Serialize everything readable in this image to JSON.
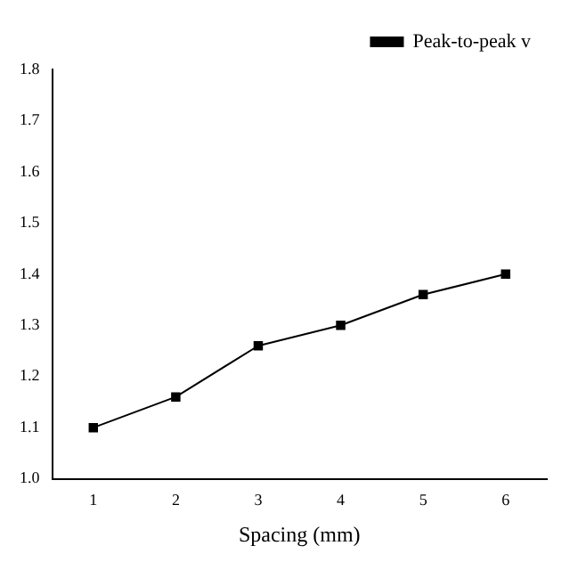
{
  "chart_data": {
    "type": "line",
    "xlabel": "Spacing (mm)",
    "x": [
      1,
      2,
      3,
      4,
      5,
      6
    ],
    "series": [
      {
        "name": "Peak-to-peak v",
        "color": "#000000",
        "values": [
          1.1,
          1.16,
          1.26,
          1.3,
          1.36,
          1.4
        ]
      }
    ],
    "xlim": [
      0.5,
      6.5
    ],
    "xticks": [
      1,
      2,
      3,
      4,
      5,
      6
    ],
    "ylim": [
      1.0,
      1.8
    ],
    "yticks": [
      {
        "value": 1.0,
        "label": "1.0"
      },
      1.1,
      1.2,
      1.3,
      1.4,
      1.5,
      1.6,
      1.7,
      1.8
    ],
    "grid": false,
    "legend": "top right",
    "marker": "square",
    "line_style": "solid"
  }
}
